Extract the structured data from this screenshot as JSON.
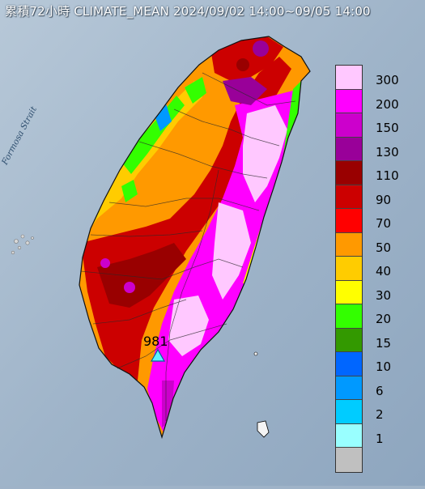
{
  "title": "累積72小時 CLIMATE_MEAN 2024/09/02 14:00~09/05 14:00",
  "strait_label": "Formosa Strait",
  "station": {
    "value": "981"
  },
  "legend": {
    "items": [
      {
        "label": "300",
        "color": "#ffc8ff"
      },
      {
        "label": "200",
        "color": "#ff00ff"
      },
      {
        "label": "150",
        "color": "#cc00cc"
      },
      {
        "label": "130",
        "color": "#990099"
      },
      {
        "label": "110",
        "color": "#990000"
      },
      {
        "label": "90",
        "color": "#cc0000"
      },
      {
        "label": "70",
        "color": "#ff0000"
      },
      {
        "label": "50",
        "color": "#ff9900"
      },
      {
        "label": "40",
        "color": "#ffcc00"
      },
      {
        "label": "30",
        "color": "#ffff00"
      },
      {
        "label": "20",
        "color": "#33ff00"
      },
      {
        "label": "15",
        "color": "#339900"
      },
      {
        "label": "10",
        "color": "#0066ff"
      },
      {
        "label": "6",
        "color": "#0099ff"
      },
      {
        "label": "2",
        "color": "#00ccff"
      },
      {
        "label": "1",
        "color": "#99ffff"
      },
      {
        "label": "",
        "color": "#c0c0c0"
      }
    ]
  }
}
